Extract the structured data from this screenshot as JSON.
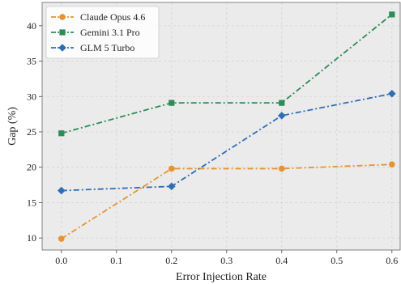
{
  "chart_data": {
    "type": "line",
    "xlabel": "Error Injection Rate",
    "ylabel": "Gap (%)",
    "x": [
      0.0,
      0.2,
      0.4,
      0.6
    ],
    "xlim": [
      -0.035,
      0.615
    ],
    "ylim": [
      8.3,
      43.3
    ],
    "xticks": [
      0.0,
      0.1,
      0.2,
      0.3,
      0.4,
      0.5,
      0.6
    ],
    "xtick_labels": [
      "0.0",
      "0.1",
      "0.2",
      "0.3",
      "0.4",
      "0.5",
      "0.6"
    ],
    "yticks": [
      10,
      15,
      20,
      25,
      30,
      35,
      40
    ],
    "ytick_labels": [
      "10",
      "15",
      "20",
      "25",
      "30",
      "35",
      "40"
    ],
    "grid": true,
    "grid_style": "dashed",
    "legend_position": "top-left",
    "line_style": "dash-dot",
    "background_color": "#ebebeb",
    "series": [
      {
        "name": "Claude Opus 4.6",
        "values": [
          9.9,
          19.8,
          19.8,
          20.4
        ],
        "color": "#e59432",
        "marker": "circle"
      },
      {
        "name": "Gemini 3.1 Pro",
        "values": [
          24.8,
          29.1,
          29.1,
          41.6
        ],
        "color": "#2f8b57",
        "marker": "square"
      },
      {
        "name": "GLM 5 Turbo",
        "values": [
          16.7,
          17.3,
          27.3,
          30.4
        ],
        "color": "#2f6db5",
        "marker": "diamond"
      }
    ]
  }
}
